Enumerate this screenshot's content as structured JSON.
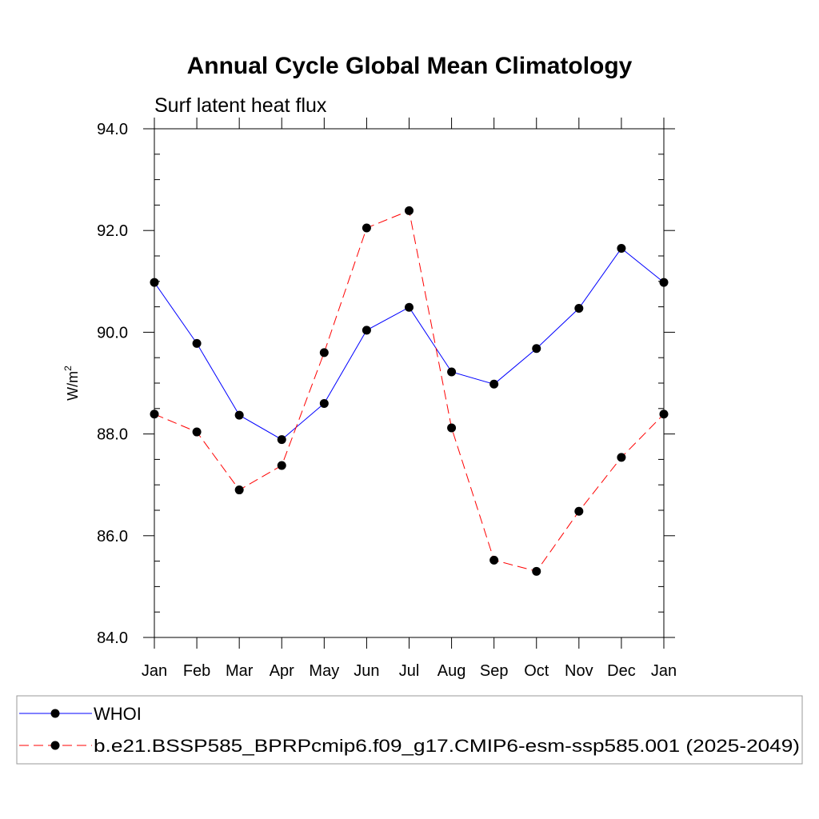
{
  "chart_data": {
    "type": "line",
    "title": "Annual Cycle Global Mean Climatology",
    "subtitle": "Surf latent heat flux",
    "ylabel": "W/m",
    "ylabel_sup": "2",
    "xlabel": "",
    "categories": [
      "Jan",
      "Feb",
      "Mar",
      "Apr",
      "May",
      "Jun",
      "Jul",
      "Aug",
      "Sep",
      "Oct",
      "Nov",
      "Dec",
      "Jan"
    ],
    "ylim": [
      84.0,
      94.0
    ],
    "yticks": [
      "84.0",
      "86.0",
      "88.0",
      "90.0",
      "92.0",
      "94.0"
    ],
    "grid": false,
    "legend_position": "bottom",
    "series": [
      {
        "name": "WHOI",
        "color": "#0000ff",
        "line_style": "solid",
        "marker": "filled-circle",
        "values": [
          90.98,
          89.78,
          88.37,
          87.89,
          88.6,
          90.04,
          90.49,
          89.22,
          88.98,
          89.68,
          90.47,
          91.65,
          90.98
        ]
      },
      {
        "name": "b.e21.BSSP585_BPRPcmip6.f09_g17.CMIP6-esm-ssp585.001 (2025-2049)",
        "color": "#ff0000",
        "line_style": "dashed",
        "marker": "filled-circle",
        "values": [
          88.39,
          88.04,
          86.9,
          87.38,
          89.6,
          92.05,
          92.39,
          88.12,
          85.52,
          85.3,
          86.48,
          87.54,
          88.39
        ]
      }
    ]
  }
}
